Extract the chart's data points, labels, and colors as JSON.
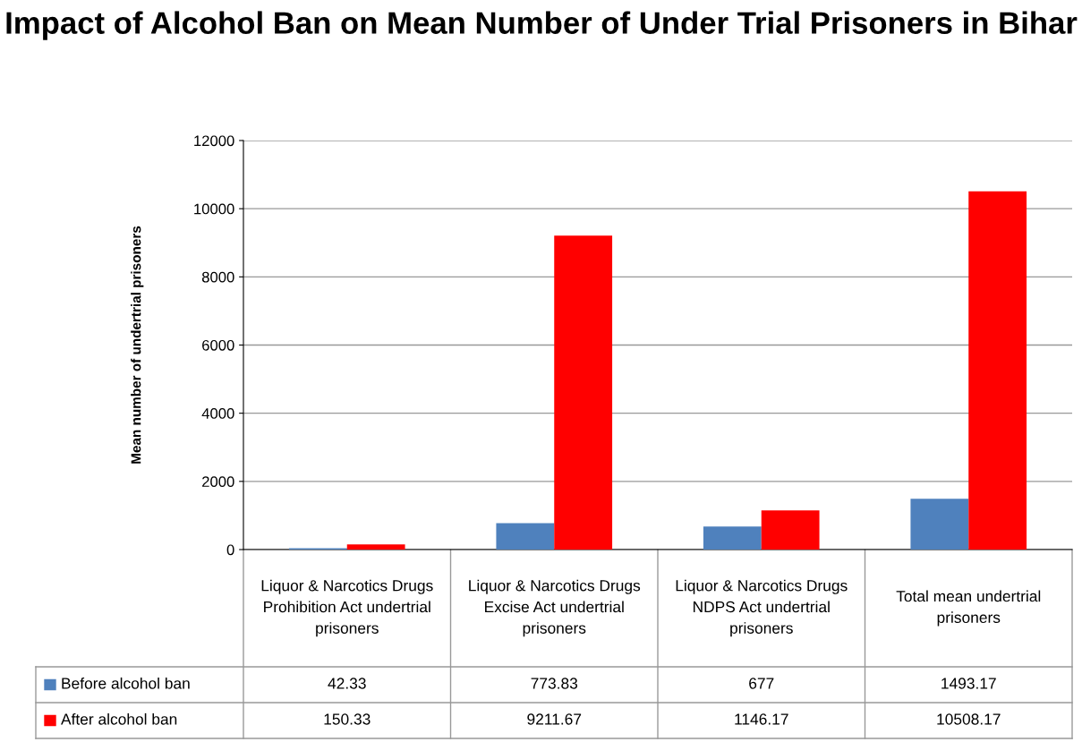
{
  "chart_data": {
    "type": "bar",
    "title": "Impact of Alcohol Ban on Mean Number of Under Trial Prisoners in Bihar",
    "ylabel": "Mean number of undertrial prisoners",
    "categories": [
      "Liquor & Narcotics Drugs Prohibition Act undertrial prisoners",
      "Liquor & Narcotics Drugs Excise Act undertrial prisoners",
      "Liquor & Narcotics Drugs NDPS Act undertrial prisoners",
      "Total mean undertrial prisoners"
    ],
    "series": [
      {
        "name": "Before alcohol ban",
        "color": "#4f81bd",
        "values": [
          42.33,
          773.83,
          677,
          1493.17
        ]
      },
      {
        "name": "After alcohol ban",
        "color": "#ff0000",
        "values": [
          150.33,
          9211.67,
          1146.17,
          10508.17
        ]
      }
    ],
    "ylim": [
      0,
      12000
    ],
    "yticks": [
      0,
      2000,
      4000,
      6000,
      8000,
      10000,
      12000
    ],
    "grid": "y",
    "legend": "bottom",
    "data_labels": true
  }
}
